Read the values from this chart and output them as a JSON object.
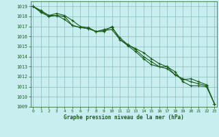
{
  "title": "Graphe pression niveau de la mer (hPa)",
  "bg_color": "#c8eef0",
  "grid_color": "#88bbbb",
  "line_color": "#1a5c1a",
  "xlim": [
    -0.3,
    23.3
  ],
  "ylim": [
    1009,
    1019.5
  ],
  "yticks": [
    1009,
    1010,
    1011,
    1012,
    1013,
    1014,
    1015,
    1016,
    1017,
    1018,
    1019
  ],
  "xticks": [
    0,
    1,
    2,
    3,
    4,
    5,
    6,
    7,
    8,
    9,
    10,
    11,
    12,
    13,
    14,
    15,
    16,
    17,
    18,
    19,
    20,
    21,
    22,
    23
  ],
  "series1": [
    1019.0,
    1018.6,
    1018.1,
    1018.1,
    1018.0,
    1017.1,
    1016.9,
    1016.8,
    1016.5,
    1016.5,
    1017.0,
    1015.7,
    1015.2,
    1014.7,
    1014.0,
    1013.5,
    1013.0,
    1013.0,
    1012.5,
    1011.5,
    1011.1,
    1011.1,
    1011.0,
    1009.3
  ],
  "series2": [
    1019.0,
    1018.4,
    1018.0,
    1018.1,
    1017.7,
    1017.1,
    1016.9,
    1016.8,
    1016.5,
    1016.6,
    1016.7,
    1015.7,
    1015.1,
    1014.5,
    1013.8,
    1013.2,
    1013.0,
    1012.8,
    1012.2,
    1011.8,
    1011.5,
    1011.3,
    1011.1,
    1009.3
  ],
  "series3": [
    1019.0,
    1018.5,
    1018.1,
    1018.3,
    1018.1,
    1017.6,
    1017.0,
    1016.9,
    1016.5,
    1016.7,
    1016.9,
    1015.9,
    1015.2,
    1014.8,
    1014.4,
    1013.8,
    1013.3,
    1013.0,
    1012.2,
    1011.7,
    1011.8,
    1011.5,
    1011.2,
    1009.3
  ]
}
